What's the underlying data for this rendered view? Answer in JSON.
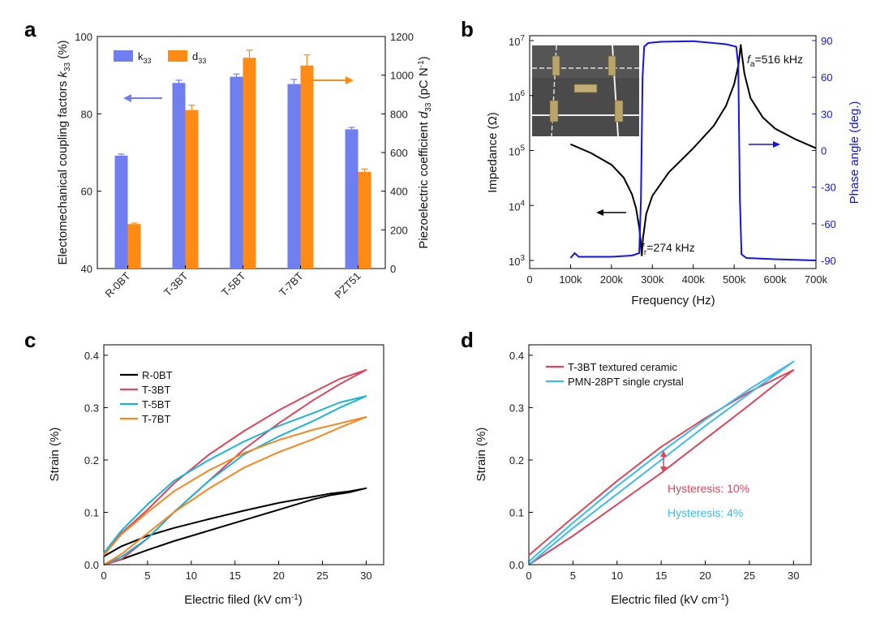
{
  "panels": [
    {
      "id": "a",
      "label": "a",
      "chart_data": {
        "type": "bar",
        "categories": [
          "R-0BT",
          "T-3BT",
          "T-5BT",
          "T-7BT",
          "PZT51"
        ],
        "series": [
          {
            "name": "k33",
            "name_main": "k",
            "name_sub": "33",
            "axis": "left",
            "color": "#6f7ff0",
            "values": [
              69.2,
              88.0,
              89.6,
              87.7,
              76.0
            ],
            "errors": [
              0.4,
              0.7,
              0.7,
              1.2,
              0.5
            ]
          },
          {
            "name": "d33",
            "name_main": "d",
            "name_sub": "33",
            "axis": "right",
            "color": "#ff8a14",
            "values": [
              230,
              820,
              1090,
              1050,
              500
            ],
            "errors": [
              5,
              25,
              40,
              55,
              15
            ]
          }
        ],
        "ylabel_left": {
          "main": "Electomechanical coupling factors ",
          "italic": "k",
          "sub": "33",
          "tail": " (%)"
        },
        "ylabel_right": {
          "main": "Piezoelectric coefficient ",
          "italic": "d",
          "sub": "33",
          "tail": " (pC N",
          "sup": "-1",
          "end": ")"
        },
        "ylim_left": [
          40,
          100
        ],
        "yticks_left": [
          "40",
          "60",
          "80",
          "100"
        ],
        "ylim_right": [
          0,
          1200
        ],
        "yticks_right": [
          "0",
          "200",
          "400",
          "600",
          "800",
          "1000",
          "1200"
        ],
        "legend_placement": "top-left"
      }
    },
    {
      "id": "b",
      "label": "b",
      "chart_data": {
        "type": "line",
        "xlabel": "Frequency (Hz)",
        "ylabel_left": "Impedance (Ω)",
        "ylabel_right": "Phase angle (deg.)",
        "xlim": [
          0,
          700000
        ],
        "xticks": [
          "0",
          "100k",
          "200k",
          "300k",
          "400k",
          "500k",
          "600k",
          "700k"
        ],
        "ylim_left_log": [
          1000,
          10000000
        ],
        "yticks_left_base": "10",
        "yticks_left_exp": [
          "3",
          "4",
          "5",
          "6",
          "7"
        ],
        "ylim_right": [
          -90,
          90
        ],
        "yticks_right": [
          "-90",
          "-60",
          "-30",
          "0",
          "30",
          "60",
          "90"
        ],
        "fr_hz": 274000,
        "fa_hz": 516000,
        "impedance": {
          "color": "#000000",
          "x": [
            100000,
            150000,
            200000,
            230000,
            250000,
            260000,
            268000,
            272000,
            274000,
            277000,
            285000,
            300000,
            340000,
            400000,
            450000,
            480000,
            500000,
            510000,
            514000,
            516000,
            519000,
            525000,
            540000,
            570000,
            600000,
            650000,
            700000
          ],
          "y": [
            130000,
            90000,
            55000,
            32000,
            16000,
            9000,
            4000,
            2000,
            1200,
            2500,
            7000,
            15000,
            40000,
            110000,
            280000,
            650000,
            1600000,
            3500000,
            6000000,
            8500000,
            5500000,
            2500000,
            900000,
            400000,
            250000,
            160000,
            110000
          ]
        },
        "phase": {
          "color": "#1414e6",
          "x": [
            100000,
            110000,
            120000,
            150000,
            200000,
            250000,
            268000,
            272000,
            276000,
            280000,
            290000,
            320000,
            400000,
            480000,
            505000,
            510000,
            514000,
            518000,
            530000,
            600000,
            700000
          ],
          "y": [
            -88,
            -84,
            -87,
            -87,
            -87,
            -86,
            -84,
            -40,
            60,
            85,
            88,
            89,
            89.5,
            87,
            85,
            70,
            -40,
            -85,
            -88,
            -89,
            -90
          ]
        },
        "annotations": {
          "fa": {
            "main": "f",
            "sub": "a",
            "rest": "=516 kHz"
          },
          "fr": {
            "main": "f",
            "sub": "r",
            "rest": "=274 kHz"
          }
        }
      }
    },
    {
      "id": "c",
      "label": "c",
      "chart_data": {
        "type": "line",
        "xlabel": {
          "main": "Electric filed (kV cm",
          "sup": "-1",
          "end": ")"
        },
        "ylabel": "Strain (%)",
        "xlim": [
          0,
          32
        ],
        "xticks": [
          "0",
          "5",
          "10",
          "15",
          "20",
          "25",
          "30"
        ],
        "ylim": [
          0,
          0.42
        ],
        "yticks": [
          "0.0",
          "0.1",
          "0.2",
          "0.3",
          "0.4"
        ],
        "legend_placement": "top-left",
        "series": [
          {
            "name": "R-0BT",
            "color": "#000000",
            "up_x": [
              0,
              2,
              5,
              8,
              12,
              16,
              20,
              24,
              26,
              28,
              30
            ],
            "up_y": [
              0.0,
              0.01,
              0.028,
              0.045,
              0.065,
              0.085,
              0.105,
              0.125,
              0.133,
              0.138,
              0.146
            ],
            "down_x": [
              30,
              28,
              26,
              24,
              20,
              16,
              12,
              8,
              5,
              2,
              0
            ],
            "down_y": [
              0.146,
              0.14,
              0.136,
              0.13,
              0.118,
              0.103,
              0.087,
              0.07,
              0.055,
              0.035,
              0.016
            ]
          },
          {
            "name": "T-3BT",
            "color": "#d9475f",
            "up_x": [
              0,
              2,
              5,
              8,
              12,
              16,
              20,
              24,
              27,
              30
            ],
            "up_y": [
              0.0,
              0.01,
              0.05,
              0.1,
              0.16,
              0.22,
              0.27,
              0.315,
              0.345,
              0.372
            ],
            "down_x": [
              30,
              27,
              24,
              20,
              16,
              12,
              8,
              5,
              2,
              0
            ],
            "down_y": [
              0.372,
              0.355,
              0.33,
              0.295,
              0.255,
              0.21,
              0.155,
              0.105,
              0.06,
              0.018
            ]
          },
          {
            "name": "T-5BT",
            "color": "#1bb4d4",
            "up_x": [
              0,
              2,
              5,
              8,
              12,
              16,
              20,
              24,
              27,
              30
            ],
            "up_y": [
              0.0,
              0.015,
              0.05,
              0.1,
              0.16,
              0.21,
              0.245,
              0.275,
              0.3,
              0.322
            ],
            "down_x": [
              30,
              27,
              24,
              20,
              16,
              12,
              8,
              5,
              2,
              0
            ],
            "down_y": [
              0.322,
              0.31,
              0.29,
              0.265,
              0.235,
              0.2,
              0.16,
              0.115,
              0.065,
              0.022
            ]
          },
          {
            "name": "T-7BT",
            "color": "#f5871f",
            "up_x": [
              0,
              2,
              5,
              8,
              12,
              16,
              20,
              24,
              27,
              30
            ],
            "up_y": [
              0.0,
              0.02,
              0.06,
              0.1,
              0.145,
              0.185,
              0.215,
              0.24,
              0.262,
              0.282
            ],
            "down_x": [
              30,
              27,
              24,
              20,
              16,
              12,
              8,
              5,
              2,
              0
            ],
            "down_y": [
              0.282,
              0.27,
              0.258,
              0.238,
              0.213,
              0.18,
              0.14,
              0.1,
              0.058,
              0.018
            ]
          }
        ]
      }
    },
    {
      "id": "d",
      "label": "d",
      "chart_data": {
        "type": "line",
        "xlabel": {
          "main": "Electric filed (kV cm",
          "sup": "-1",
          "end": ")"
        },
        "ylabel": "Strain (%)",
        "xlim": [
          0,
          32
        ],
        "xticks": [
          "0",
          "5",
          "10",
          "15",
          "20",
          "25",
          "30"
        ],
        "ylim": [
          0,
          0.42
        ],
        "yticks": [
          "0.0",
          "0.1",
          "0.2",
          "0.3",
          "0.4"
        ],
        "legend_placement": "top-left",
        "series": [
          {
            "name": "T-3BT textured ceramic",
            "color": "#d9475f",
            "up_x": [
              0,
              5,
              10,
              15,
              20,
              25,
              30
            ],
            "up_y": [
              0.0,
              0.055,
              0.115,
              0.175,
              0.24,
              0.305,
              0.372
            ],
            "down_x": [
              30,
              25,
              20,
              15,
              10,
              5,
              0
            ],
            "down_y": [
              0.372,
              0.33,
              0.28,
              0.225,
              0.16,
              0.09,
              0.018
            ]
          },
          {
            "name": "PMN-28PT single crystal",
            "color": "#3cbbe8",
            "up_x": [
              0,
              5,
              10,
              15,
              20,
              25,
              30
            ],
            "up_y": [
              0.0,
              0.07,
              0.135,
              0.2,
              0.265,
              0.327,
              0.388
            ],
            "down_x": [
              30,
              25,
              20,
              15,
              10,
              5,
              0
            ],
            "down_y": [
              0.388,
              0.335,
              0.277,
              0.215,
              0.15,
              0.08,
              0.006
            ]
          }
        ],
        "annotations": [
          {
            "text": "Hysteresis: 10%",
            "color": "#d9475f"
          },
          {
            "text": "Hysteresis: 4%",
            "color": "#3cbbe8"
          }
        ]
      }
    }
  ]
}
